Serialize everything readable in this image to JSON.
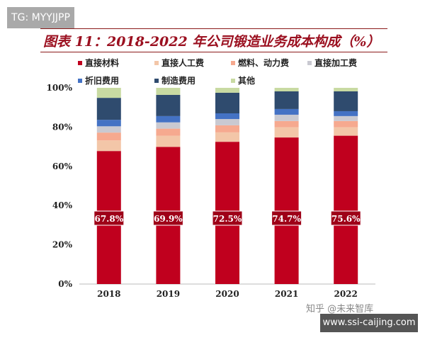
{
  "watermark_top": "TG: MYYJJPP",
  "watermark_zhihu": "知乎 @未来智库",
  "watermark_site": "www.ssi-caijing.com",
  "chart_data": {
    "type": "bar",
    "stacked": true,
    "title": "图表 11：2018-2022 年公司锻造业务成本构成（%）",
    "categories": [
      "2018",
      "2019",
      "2020",
      "2021",
      "2022"
    ],
    "ylim": [
      0,
      100
    ],
    "yticks": [
      "0%",
      "20%",
      "40%",
      "60%",
      "80%",
      "100%"
    ],
    "legend_position": "top",
    "grid": false,
    "series": [
      {
        "name": "直接材料",
        "color": "#c0001e",
        "values": [
          67.8,
          69.9,
          72.5,
          74.7,
          75.6
        ],
        "labels": [
          "67.8%",
          "69.9%",
          "72.5%",
          "74.7%",
          "75.6%"
        ]
      },
      {
        "name": "直接人工费",
        "color": "#f3c6a8",
        "values": [
          5.4,
          5.7,
          4.8,
          5.2,
          4.3
        ]
      },
      {
        "name": "燃料、动力费",
        "color": "#f6a98f",
        "values": [
          4.0,
          3.6,
          3.6,
          3.2,
          3.2
        ]
      },
      {
        "name": "直接加工费",
        "color": "#c9c9d1",
        "values": [
          3.2,
          3.2,
          3.2,
          3.2,
          2.5
        ]
      },
      {
        "name": "折旧费用",
        "color": "#4472c4",
        "values": [
          3.3,
          3.2,
          2.9,
          2.9,
          2.5
        ]
      },
      {
        "name": "制造费用",
        "color": "#2f4b6e",
        "values": [
          11.2,
          10.8,
          10.5,
          9.0,
          10.1
        ]
      },
      {
        "name": "其他",
        "color": "#c8daa2",
        "values": [
          5.1,
          3.6,
          2.5,
          1.8,
          1.8
        ]
      }
    ]
  }
}
